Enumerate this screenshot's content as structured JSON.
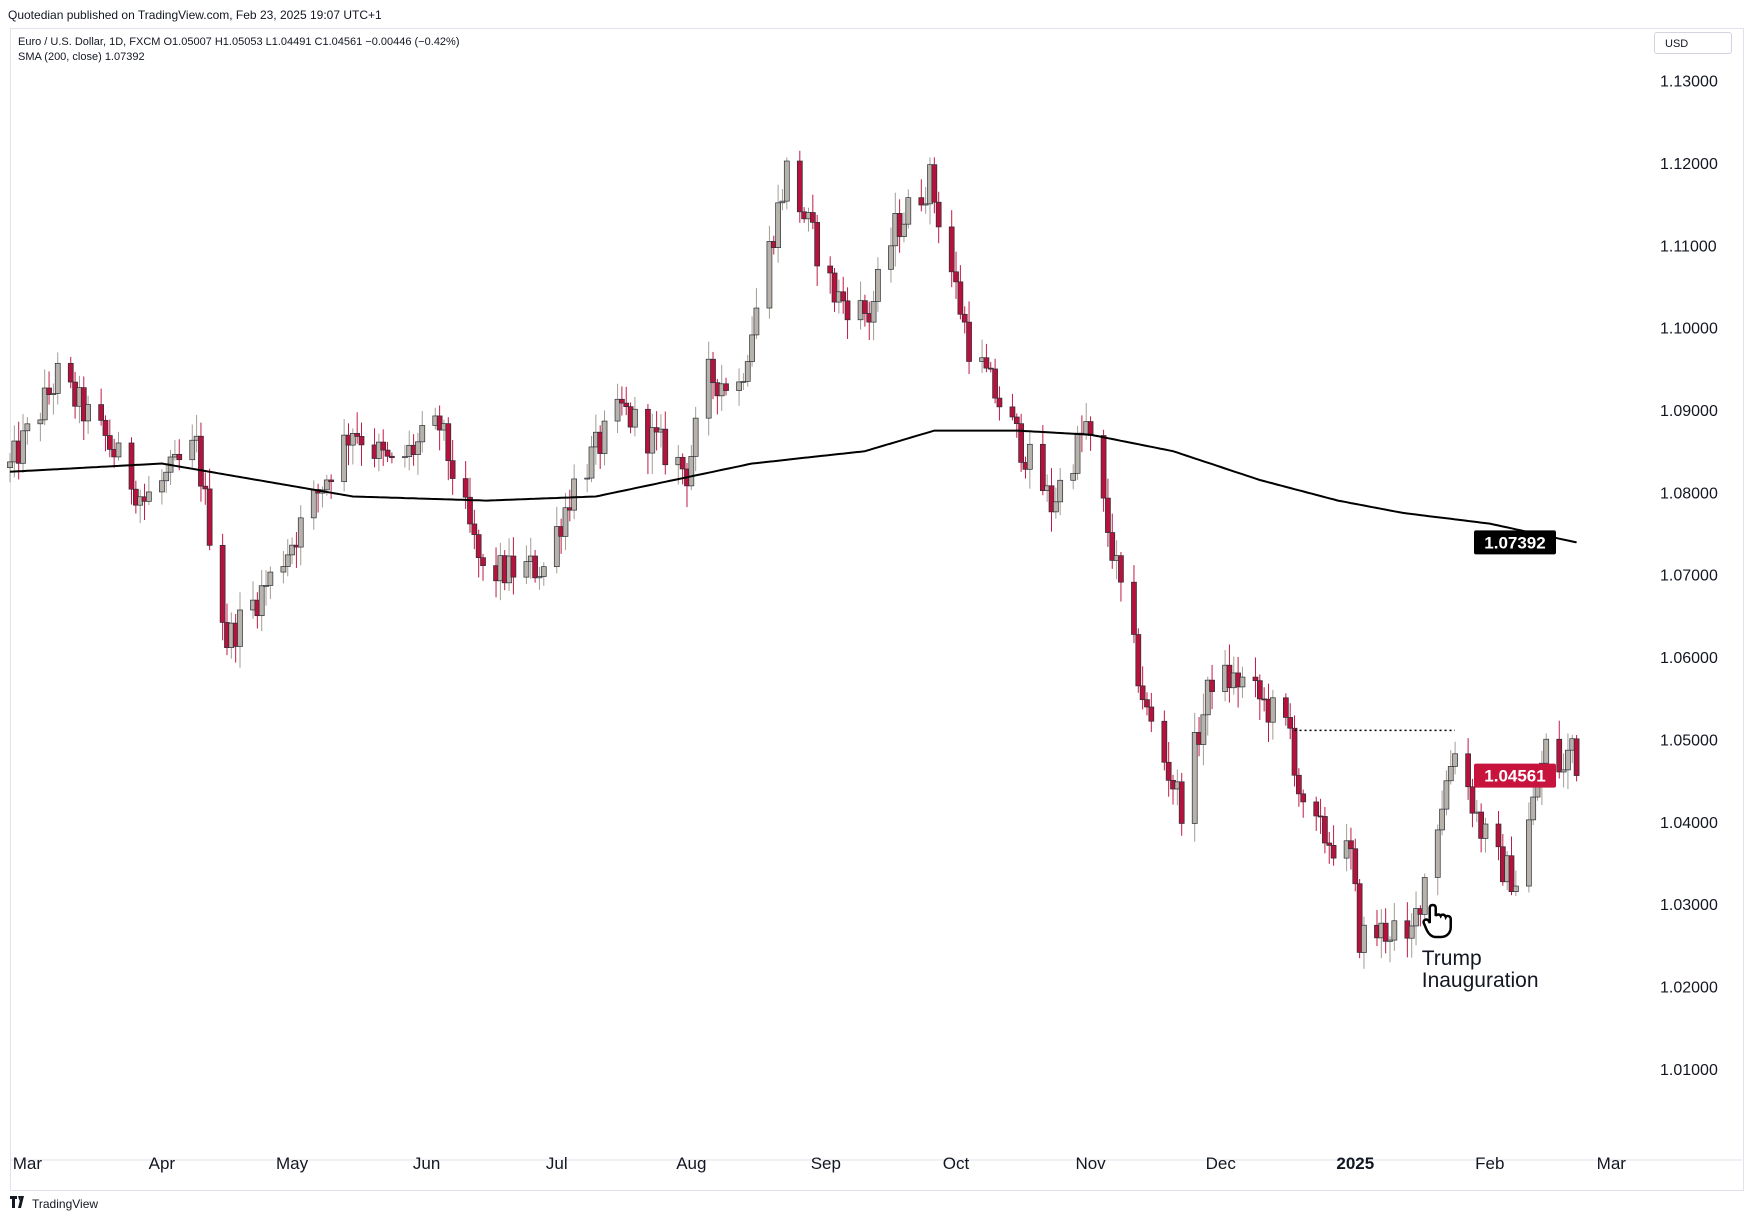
{
  "header": {
    "published": "Quotedian published on TradingView.com, Feb 23, 2025 19:07 UTC+1"
  },
  "legend": {
    "line1": "Euro / U.S. Dollar, 1D, FXCM  O1.05007  H1.05053  L1.04491  C1.04561  −0.00446 (−0.42%)",
    "line2": "SMA (200, close)  1.07392"
  },
  "currency_button": "USD",
  "footer": {
    "brand": "TradingView",
    "logo": "tradingview-logo-icon"
  },
  "annotation": {
    "line1": "Trump",
    "line2": "Inauguration",
    "icon": "pointing-hand-icon"
  },
  "colors": {
    "up": "#b8b3aa",
    "down": "#b5133b",
    "sma": "#000000",
    "wick_up": "#a29d94",
    "wick_down": "#c11a44",
    "last_price": "#c8143d",
    "sma_label": "#000000"
  },
  "chart_data": {
    "type": "candlestick",
    "symbol": "Euro / U.S. Dollar",
    "interval": "1D",
    "source": "FXCM",
    "ylim": [
      1.005,
      1.1325
    ],
    "y_ticks": [
      "1.01000",
      "1.02000",
      "1.03000",
      "1.04000",
      "1.05000",
      "1.06000",
      "1.07000",
      "1.08000",
      "1.09000",
      "1.10000",
      "1.11000",
      "1.12000",
      "1.13000"
    ],
    "x_ticks": [
      "Mar",
      "Apr",
      "May",
      "Jun",
      "Jul",
      "Aug",
      "Sep",
      "Oct",
      "Nov",
      "Dec",
      "2025",
      "Feb",
      "Mar"
    ],
    "sma": {
      "name": "SMA (200, close)",
      "last": "1.07392"
    },
    "last_price": "1.04561",
    "resistance_level": 1.0511,
    "anchors": [
      [
        "2024-02-26",
        1.083
      ],
      [
        "2024-03-08",
        1.094
      ],
      [
        "2024-03-19",
        1.0865
      ],
      [
        "2024-03-28",
        1.079
      ],
      [
        "2024-04-09",
        1.0855
      ],
      [
        "2024-04-16",
        1.062
      ],
      [
        "2024-04-26",
        1.0695
      ],
      [
        "2024-05-03",
        1.076
      ],
      [
        "2024-05-15",
        1.088
      ],
      [
        "2024-05-24",
        1.083
      ],
      [
        "2024-06-04",
        1.088
      ],
      [
        "2024-06-14",
        1.07
      ],
      [
        "2024-06-28",
        1.071
      ],
      [
        "2024-07-05",
        1.081
      ],
      [
        "2024-07-16",
        1.09
      ],
      [
        "2024-07-31",
        1.0825
      ],
      [
        "2024-08-05",
        1.094
      ],
      [
        "2024-08-12",
        1.093
      ],
      [
        "2024-08-23",
        1.119
      ],
      [
        "2024-09-03",
        1.104
      ],
      [
        "2024-09-11",
        1.1015
      ],
      [
        "2024-09-17",
        1.112
      ],
      [
        "2024-09-25",
        1.118
      ],
      [
        "2024-10-04",
        1.098
      ],
      [
        "2024-10-10",
        1.092
      ],
      [
        "2024-10-23",
        1.0785
      ],
      [
        "2024-10-31",
        1.088
      ],
      [
        "2024-11-06",
        1.073
      ],
      [
        "2024-11-14",
        1.053
      ],
      [
        "2024-11-22",
        1.042
      ],
      [
        "2024-11-29",
        1.0575
      ],
      [
        "2024-12-06",
        1.057
      ],
      [
        "2024-12-17",
        1.051
      ],
      [
        "2024-12-20",
        1.0405
      ],
      [
        "2024-12-31",
        1.0355
      ],
      [
        "2025-01-02",
        1.026
      ],
      [
        "2025-01-10",
        1.027
      ],
      [
        "2025-01-13",
        1.024
      ],
      [
        "2025-01-24",
        1.0495
      ],
      [
        "2025-01-30",
        1.039
      ],
      [
        "2025-02-03",
        1.035
      ],
      [
        "2025-02-07",
        1.033
      ],
      [
        "2025-02-14",
        1.049
      ],
      [
        "2025-02-18",
        1.046
      ],
      [
        "2025-02-20",
        1.05
      ],
      [
        "2025-02-21",
        1.04561
      ]
    ],
    "sma_anchors": [
      [
        "2024-02-26",
        1.0825
      ],
      [
        "2024-04-01",
        1.0835
      ],
      [
        "2024-05-15",
        1.0795
      ],
      [
        "2024-06-15",
        1.079
      ],
      [
        "2024-07-10",
        1.0795
      ],
      [
        "2024-08-15",
        1.0835
      ],
      [
        "2024-09-10",
        1.085
      ],
      [
        "2024-09-26",
        1.0875
      ],
      [
        "2024-10-15",
        1.0875
      ],
      [
        "2024-11-01",
        1.087
      ],
      [
        "2024-11-20",
        1.085
      ],
      [
        "2024-12-10",
        1.0815
      ],
      [
        "2024-12-28",
        1.079
      ],
      [
        "2025-01-12",
        1.0775
      ],
      [
        "2025-02-01",
        1.0762
      ],
      [
        "2025-02-21",
        1.07392
      ]
    ]
  }
}
